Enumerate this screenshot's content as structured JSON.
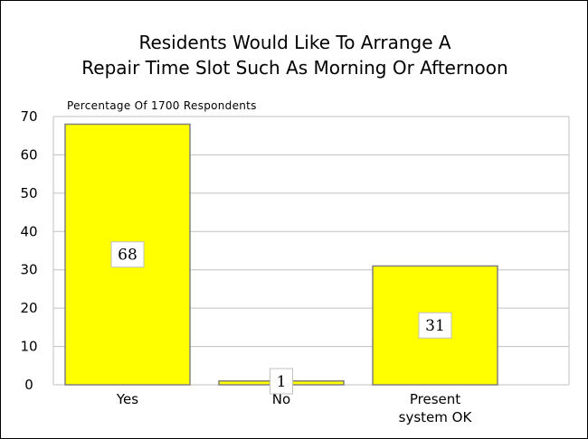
{
  "chart_data": {
    "type": "bar",
    "title_lines": [
      "Residents Would Like To Arrange A",
      "Repair Time Slot Such As Morning Or Afternoon"
    ],
    "ylabel": "Percentage Of 1700 Respondents",
    "xlabel": "",
    "categories": [
      [
        "Yes"
      ],
      [
        "No"
      ],
      [
        "Present",
        "system OK"
      ]
    ],
    "values": [
      68,
      1,
      31
    ],
    "data_labels": [
      "68",
      "1",
      "31"
    ],
    "ylim": [
      0,
      70
    ],
    "yticks": [
      0,
      10,
      20,
      30,
      40,
      50,
      60,
      70
    ],
    "grid": true,
    "bar_color": "#ffff00",
    "bar_edge_color": "#808080",
    "grid_color": "#c0c0c0"
  }
}
